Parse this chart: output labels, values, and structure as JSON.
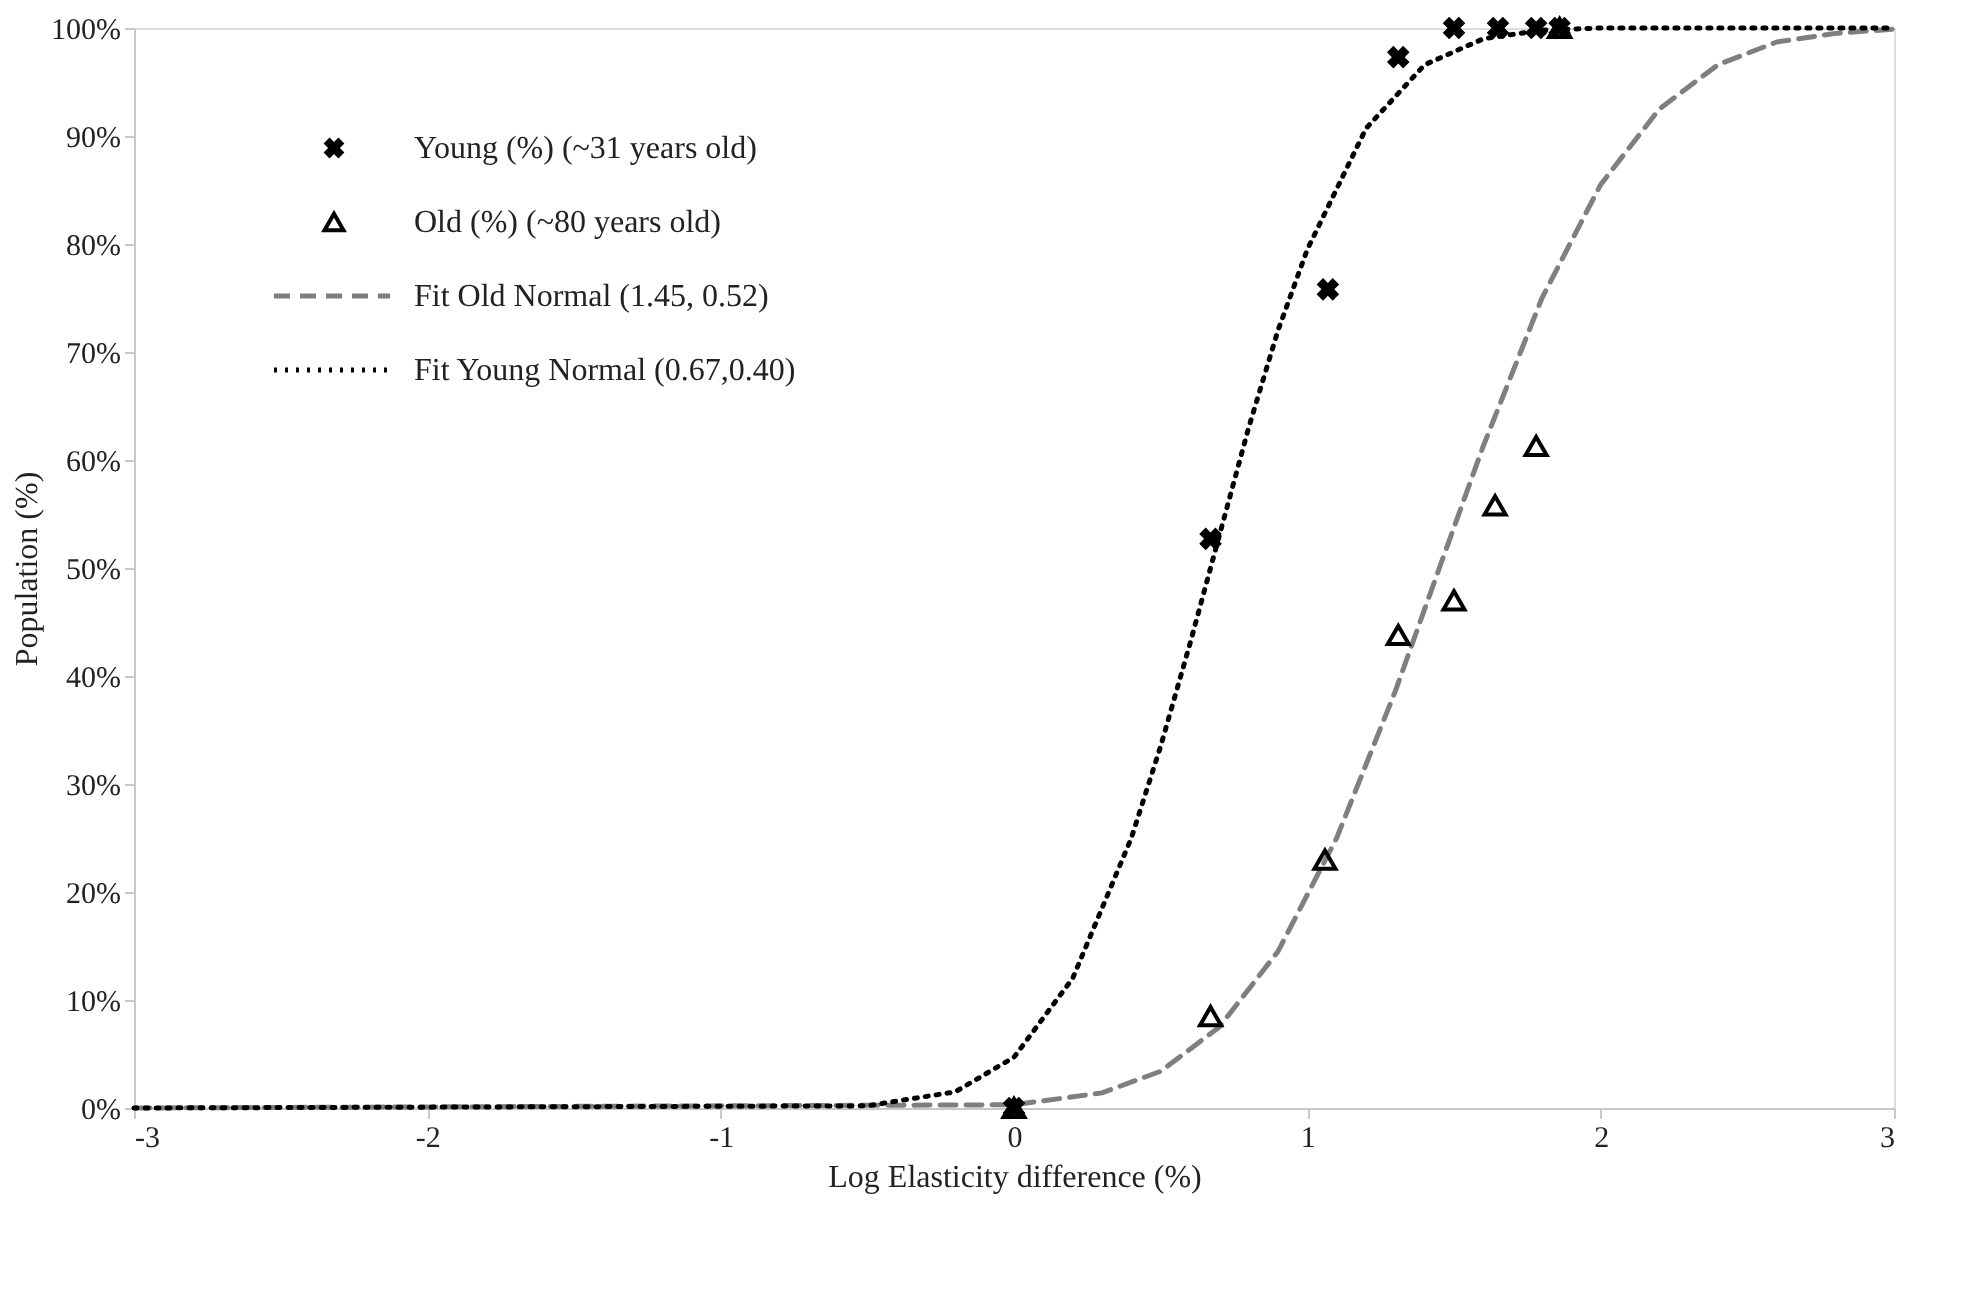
{
  "chart_data": {
    "type": "scatter",
    "xlabel": "Log Elasticity difference (%)",
    "ylabel": "Population (%)",
    "xlim": [
      -3,
      3
    ],
    "xticks": [
      -3,
      -2,
      -1,
      0,
      1,
      2,
      3
    ],
    "ylim": [
      0,
      100
    ],
    "yticks": [
      {
        "value": 0,
        "label": "0%"
      },
      {
        "value": 10,
        "label": "10%"
      },
      {
        "value": 20,
        "label": "20%"
      },
      {
        "value": 30,
        "label": "30%"
      },
      {
        "value": 40,
        "label": "40%"
      },
      {
        "value": 50,
        "label": "50%"
      },
      {
        "value": 60,
        "label": "60%"
      },
      {
        "value": 70,
        "label": "70%"
      },
      {
        "value": 80,
        "label": "80%"
      },
      {
        "value": 90,
        "label": "90%"
      },
      {
        "value": 100,
        "label": "100%"
      }
    ],
    "grid": false,
    "legend": "top left",
    "series": [
      {
        "name": "Young (%) (~31 years old)",
        "marker": "cross",
        "color": "#000000",
        "x": [
          0,
          0.67,
          1.07,
          1.31,
          1.5,
          1.65,
          1.78,
          1.86
        ],
        "values": [
          0,
          52.7,
          75.8,
          97.3,
          100,
          100,
          100,
          100
        ]
      },
      {
        "name": "Old (%) (~80 years old)",
        "marker": "triangle",
        "color": "#000000",
        "x": [
          0,
          0.67,
          1.06,
          1.31,
          1.5,
          1.64,
          1.78,
          1.86
        ],
        "values": [
          0,
          8.5,
          23,
          43.8,
          47,
          55.8,
          61.3,
          100
        ]
      },
      {
        "name": "Fit Old Normal (1.45, 0.52)",
        "type": "line",
        "line_style": "dashed",
        "color": "#7f7f7f",
        "x": [
          -3,
          0,
          0.3,
          0.5,
          0.7,
          0.9,
          1.1,
          1.3,
          1.45,
          1.6,
          1.8,
          2.0,
          2.2,
          2.4,
          2.6,
          2.8,
          3.0
        ],
        "values": [
          0,
          0.3,
          1.4,
          3.4,
          7.5,
          14.5,
          25,
          38.6,
          50,
          61.3,
          75,
          85.5,
          92.5,
          96.6,
          98.7,
          99.5,
          99.9
        ]
      },
      {
        "name": "Fit Young Normal (0.67,0.40)",
        "type": "line",
        "line_style": "dotted",
        "color": "#000000",
        "x": [
          -3,
          -0.5,
          -0.2,
          0,
          0.2,
          0.4,
          0.5,
          0.6,
          0.7,
          0.8,
          0.9,
          1.0,
          1.2,
          1.4,
          1.6,
          1.8,
          2.0,
          3.0
        ],
        "values": [
          0,
          0.2,
          1.5,
          4.7,
          12,
          25,
          33.5,
          43,
          53,
          63,
          72,
          79.5,
          90.7,
          96.6,
          99,
          99.8,
          100,
          100
        ]
      }
    ]
  }
}
